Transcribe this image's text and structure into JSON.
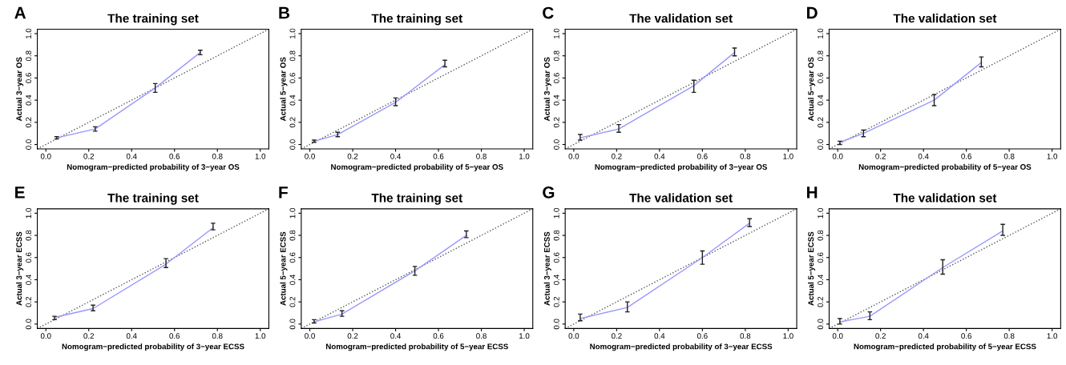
{
  "chart_data": [
    {
      "type": "line",
      "title": "The training set",
      "xlabel": "Nomogram−predicted probability of 3−year OS",
      "ylabel": "Actual 3−year OS",
      "annotations": [
        "A"
      ],
      "xlim": [
        -0.04,
        1.04
      ],
      "ylim": [
        -0.04,
        1.04
      ],
      "xticks": [
        {
          "value": 0,
          "label": "0.0"
        },
        {
          "value": 0.2,
          "label": "0.2"
        },
        {
          "value": 0.4,
          "label": "0.4"
        },
        {
          "value": 0.6,
          "label": "0.6"
        },
        {
          "value": 0.8,
          "label": "0.8"
        },
        {
          "value": 1,
          "label": "1.0"
        }
      ],
      "yticks": [
        {
          "value": 0,
          "label": "0.0"
        },
        {
          "value": 0.2,
          "label": "0.2"
        },
        {
          "value": 0.4,
          "label": "0.4"
        },
        {
          "value": 0.6,
          "label": "0.6"
        },
        {
          "value": 0.8,
          "label": "0.8"
        },
        {
          "value": 1,
          "label": "1.0"
        }
      ],
      "grid": false,
      "series": [
        {
          "color": "#555555",
          "line_style": "dotted",
          "x": [
            -0.04,
            1.04
          ],
          "values": [
            -0.04,
            1.04
          ]
        },
        {
          "color": "#9999ff",
          "line_style": "solid",
          "x": [
            0.05,
            0.23,
            0.51,
            0.72
          ],
          "values": [
            0.06,
            0.14,
            0.51,
            0.83
          ],
          "errors": [
            [
              0.05,
              0.07
            ],
            [
              0.12,
              0.16
            ],
            [
              0.47,
              0.55
            ],
            [
              0.81,
              0.85
            ]
          ]
        }
      ]
    },
    {
      "type": "line",
      "title": "The training set",
      "xlabel": "Nomogram−predicted probability of 5−year OS",
      "ylabel": "Actual 5−year OS",
      "annotations": [
        "B"
      ],
      "xlim": [
        -0.04,
        1.04
      ],
      "ylim": [
        -0.04,
        1.04
      ],
      "xticks": [
        {
          "value": 0,
          "label": "0.0"
        },
        {
          "value": 0.2,
          "label": "0.2"
        },
        {
          "value": 0.4,
          "label": "0.4"
        },
        {
          "value": 0.6,
          "label": "0.6"
        },
        {
          "value": 0.8,
          "label": "0.8"
        },
        {
          "value": 1,
          "label": "1.0"
        }
      ],
      "yticks": [
        {
          "value": 0,
          "label": "0.0"
        },
        {
          "value": 0.2,
          "label": "0.2"
        },
        {
          "value": 0.4,
          "label": "0.4"
        },
        {
          "value": 0.6,
          "label": "0.6"
        },
        {
          "value": 0.8,
          "label": "0.8"
        },
        {
          "value": 1,
          "label": "1.0"
        }
      ],
      "grid": false,
      "series": [
        {
          "color": "#555555",
          "line_style": "dotted",
          "x": [
            -0.04,
            1.04
          ],
          "values": [
            -0.04,
            1.04
          ]
        },
        {
          "color": "#9999ff",
          "line_style": "solid",
          "x": [
            0.02,
            0.13,
            0.4,
            0.63
          ],
          "values": [
            0.03,
            0.09,
            0.38,
            0.72
          ],
          "errors": [
            [
              0.02,
              0.04
            ],
            [
              0.07,
              0.11
            ],
            [
              0.35,
              0.42
            ],
            [
              0.7,
              0.76
            ]
          ]
        }
      ]
    },
    {
      "type": "line",
      "title": "The validation set",
      "xlabel": "Nomogram−predicted probability of 3−year OS",
      "ylabel": "Actual 3−year OS",
      "annotations": [
        "C"
      ],
      "xlim": [
        -0.04,
        1.04
      ],
      "ylim": [
        -0.04,
        1.04
      ],
      "xticks": [
        {
          "value": 0,
          "label": "0.0"
        },
        {
          "value": 0.2,
          "label": "0.2"
        },
        {
          "value": 0.4,
          "label": "0.4"
        },
        {
          "value": 0.6,
          "label": "0.6"
        },
        {
          "value": 0.8,
          "label": "0.8"
        },
        {
          "value": 1,
          "label": "1.0"
        }
      ],
      "yticks": [
        {
          "value": 0,
          "label": "0.0"
        },
        {
          "value": 0.2,
          "label": "0.2"
        },
        {
          "value": 0.4,
          "label": "0.4"
        },
        {
          "value": 0.6,
          "label": "0.6"
        },
        {
          "value": 0.8,
          "label": "0.8"
        },
        {
          "value": 1,
          "label": "1.0"
        }
      ],
      "grid": false,
      "series": [
        {
          "color": "#555555",
          "line_style": "dotted",
          "x": [
            -0.04,
            1.04
          ],
          "values": [
            -0.04,
            1.04
          ]
        },
        {
          "color": "#9999ff",
          "line_style": "solid",
          "x": [
            0.03,
            0.21,
            0.56,
            0.75
          ],
          "values": [
            0.06,
            0.14,
            0.53,
            0.83
          ],
          "errors": [
            [
              0.04,
              0.09
            ],
            [
              0.11,
              0.18
            ],
            [
              0.47,
              0.58
            ],
            [
              0.8,
              0.87
            ]
          ]
        }
      ]
    },
    {
      "type": "line",
      "title": "The validation set",
      "xlabel": "Nomogram−predicted probability of 5−year OS",
      "ylabel": "Actual 5−year OS",
      "annotations": [
        "D"
      ],
      "xlim": [
        -0.04,
        1.04
      ],
      "ylim": [
        -0.04,
        1.04
      ],
      "xticks": [
        {
          "value": 0,
          "label": "0.0"
        },
        {
          "value": 0.2,
          "label": "0.2"
        },
        {
          "value": 0.4,
          "label": "0.4"
        },
        {
          "value": 0.6,
          "label": "0.6"
        },
        {
          "value": 0.8,
          "label": "0.8"
        },
        {
          "value": 1,
          "label": "1.0"
        }
      ],
      "yticks": [
        {
          "value": 0,
          "label": "0.0"
        },
        {
          "value": 0.2,
          "label": "0.2"
        },
        {
          "value": 0.4,
          "label": "0.4"
        },
        {
          "value": 0.6,
          "label": "0.6"
        },
        {
          "value": 0.8,
          "label": "0.8"
        },
        {
          "value": 1,
          "label": "1.0"
        }
      ],
      "grid": false,
      "series": [
        {
          "color": "#555555",
          "line_style": "dotted",
          "x": [
            -0.04,
            1.04
          ],
          "values": [
            -0.04,
            1.04
          ]
        },
        {
          "color": "#9999ff",
          "line_style": "solid",
          "x": [
            0.01,
            0.12,
            0.45,
            0.67
          ],
          "values": [
            0.02,
            0.1,
            0.4,
            0.74
          ],
          "errors": [
            [
              0.0,
              0.03
            ],
            [
              0.07,
              0.13
            ],
            [
              0.35,
              0.45
            ],
            [
              0.7,
              0.79
            ]
          ]
        }
      ]
    },
    {
      "type": "line",
      "title": "The training set",
      "xlabel": "Nomogram−predicted probability of 3−year ECSS",
      "ylabel": "Actual 3−year ECSS",
      "annotations": [
        "E"
      ],
      "xlim": [
        -0.04,
        1.04
      ],
      "ylim": [
        -0.04,
        1.04
      ],
      "xticks": [
        {
          "value": 0,
          "label": "0.0"
        },
        {
          "value": 0.2,
          "label": "0.2"
        },
        {
          "value": 0.4,
          "label": "0.4"
        },
        {
          "value": 0.6,
          "label": "0.6"
        },
        {
          "value": 0.8,
          "label": "0.8"
        },
        {
          "value": 1,
          "label": "1.0"
        }
      ],
      "yticks": [
        {
          "value": 0,
          "label": "0.0"
        },
        {
          "value": 0.2,
          "label": "0.2"
        },
        {
          "value": 0.4,
          "label": "0.4"
        },
        {
          "value": 0.6,
          "label": "0.6"
        },
        {
          "value": 0.8,
          "label": "0.8"
        },
        {
          "value": 1,
          "label": "1.0"
        }
      ],
      "grid": false,
      "series": [
        {
          "color": "#555555",
          "line_style": "dotted",
          "x": [
            -0.04,
            1.04
          ],
          "values": [
            -0.04,
            1.04
          ]
        },
        {
          "color": "#9999ff",
          "line_style": "solid",
          "x": [
            0.04,
            0.22,
            0.56,
            0.78
          ],
          "values": [
            0.06,
            0.14,
            0.54,
            0.87
          ],
          "errors": [
            [
              0.04,
              0.07
            ],
            [
              0.12,
              0.17
            ],
            [
              0.51,
              0.59
            ],
            [
              0.85,
              0.91
            ]
          ]
        }
      ]
    },
    {
      "type": "line",
      "title": "The training set",
      "xlabel": "Nomogram−predicted probability of 5−year ECSS",
      "ylabel": "Actual 5−year ECSS",
      "annotations": [
        "F"
      ],
      "xlim": [
        -0.04,
        1.04
      ],
      "ylim": [
        -0.04,
        1.04
      ],
      "xticks": [
        {
          "value": 0,
          "label": "0.0"
        },
        {
          "value": 0.2,
          "label": "0.2"
        },
        {
          "value": 0.4,
          "label": "0.4"
        },
        {
          "value": 0.6,
          "label": "0.6"
        },
        {
          "value": 0.8,
          "label": "0.8"
        },
        {
          "value": 1,
          "label": "1.0"
        }
      ],
      "yticks": [
        {
          "value": 0,
          "label": "0.0"
        },
        {
          "value": 0.2,
          "label": "0.2"
        },
        {
          "value": 0.4,
          "label": "0.4"
        },
        {
          "value": 0.6,
          "label": "0.6"
        },
        {
          "value": 0.8,
          "label": "0.8"
        },
        {
          "value": 1,
          "label": "1.0"
        }
      ],
      "grid": false,
      "series": [
        {
          "color": "#555555",
          "line_style": "dotted",
          "x": [
            -0.04,
            1.04
          ],
          "values": [
            -0.04,
            1.04
          ]
        },
        {
          "color": "#9999ff",
          "line_style": "solid",
          "x": [
            0.02,
            0.15,
            0.49,
            0.73
          ],
          "values": [
            0.02,
            0.09,
            0.48,
            0.8
          ],
          "errors": [
            [
              0.01,
              0.04
            ],
            [
              0.07,
              0.12
            ],
            [
              0.44,
              0.52
            ],
            [
              0.78,
              0.84
            ]
          ]
        }
      ]
    },
    {
      "type": "line",
      "title": "The validation set",
      "xlabel": "Nomogram−predicted probability of 3−year ECSS",
      "ylabel": "Actual 3−year ECSS",
      "annotations": [
        "G"
      ],
      "xlim": [
        -0.04,
        1.04
      ],
      "ylim": [
        -0.04,
        1.04
      ],
      "xticks": [
        {
          "value": 0,
          "label": "0.0"
        },
        {
          "value": 0.2,
          "label": "0.2"
        },
        {
          "value": 0.4,
          "label": "0.4"
        },
        {
          "value": 0.6,
          "label": "0.6"
        },
        {
          "value": 0.8,
          "label": "0.8"
        },
        {
          "value": 1,
          "label": "1.0"
        }
      ],
      "yticks": [
        {
          "value": 0,
          "label": "0.0"
        },
        {
          "value": 0.2,
          "label": "0.2"
        },
        {
          "value": 0.4,
          "label": "0.4"
        },
        {
          "value": 0.6,
          "label": "0.6"
        },
        {
          "value": 0.8,
          "label": "0.8"
        },
        {
          "value": 1,
          "label": "1.0"
        }
      ],
      "grid": false,
      "series": [
        {
          "color": "#555555",
          "line_style": "dotted",
          "x": [
            -0.04,
            1.04
          ],
          "values": [
            -0.04,
            1.04
          ]
        },
        {
          "color": "#9999ff",
          "line_style": "solid",
          "x": [
            0.03,
            0.25,
            0.6,
            0.82
          ],
          "values": [
            0.05,
            0.15,
            0.6,
            0.91
          ],
          "errors": [
            [
              0.03,
              0.09
            ],
            [
              0.11,
              0.2
            ],
            [
              0.54,
              0.66
            ],
            [
              0.88,
              0.95
            ]
          ]
        }
      ]
    },
    {
      "type": "line",
      "title": "The validation set",
      "xlabel": "Nomogram−predicted probability of 5−year ECSS",
      "ylabel": "Actual 5−year ECSS",
      "annotations": [
        "H"
      ],
      "xlim": [
        -0.04,
        1.04
      ],
      "ylim": [
        -0.04,
        1.04
      ],
      "xticks": [
        {
          "value": 0,
          "label": "0.0"
        },
        {
          "value": 0.2,
          "label": "0.2"
        },
        {
          "value": 0.4,
          "label": "0.4"
        },
        {
          "value": 0.6,
          "label": "0.6"
        },
        {
          "value": 0.8,
          "label": "0.8"
        },
        {
          "value": 1,
          "label": "1.0"
        }
      ],
      "yticks": [
        {
          "value": 0,
          "label": "0.0"
        },
        {
          "value": 0.2,
          "label": "0.2"
        },
        {
          "value": 0.4,
          "label": "0.4"
        },
        {
          "value": 0.6,
          "label": "0.6"
        },
        {
          "value": 0.8,
          "label": "0.8"
        },
        {
          "value": 1,
          "label": "1.0"
        }
      ],
      "grid": false,
      "series": [
        {
          "color": "#555555",
          "line_style": "dotted",
          "x": [
            -0.04,
            1.04
          ],
          "values": [
            -0.04,
            1.04
          ]
        },
        {
          "color": "#9999ff",
          "line_style": "solid",
          "x": [
            0.01,
            0.15,
            0.49,
            0.77
          ],
          "values": [
            0.02,
            0.07,
            0.51,
            0.84
          ],
          "errors": [
            [
              0.0,
              0.05
            ],
            [
              0.04,
              0.11
            ],
            [
              0.45,
              0.58
            ],
            [
              0.8,
              0.9
            ]
          ]
        }
      ]
    }
  ]
}
